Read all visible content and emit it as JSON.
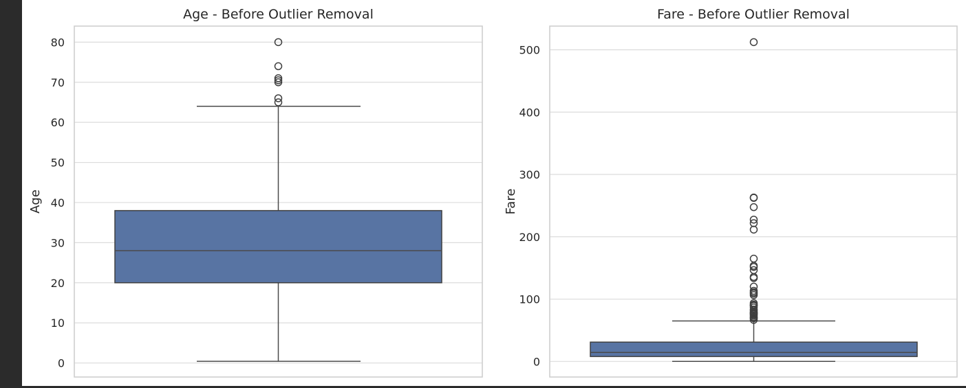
{
  "chart_data": [
    {
      "type": "box",
      "title": "Age - Before Outlier Removal",
      "xlabel": "",
      "ylabel": "Age",
      "ylim": [
        -3.5,
        84
      ],
      "yticks": [
        0,
        10,
        20,
        30,
        40,
        50,
        60,
        70,
        80
      ],
      "grid": true,
      "color": "#5874a3",
      "box": {
        "whisker_low": 0.42,
        "q1": 20,
        "median": 28,
        "q3": 38,
        "whisker_high": 64,
        "outliers": [
          65,
          66,
          70,
          70.5,
          71,
          74,
          80
        ]
      }
    },
    {
      "type": "box",
      "title": "Fare - Before Outlier Removal",
      "xlabel": "",
      "ylabel": "Fare",
      "ylim": [
        -25,
        538
      ],
      "yticks": [
        0,
        100,
        200,
        300,
        400,
        500
      ],
      "grid": true,
      "color": "#5874a3",
      "box": {
        "whisker_low": 0,
        "q1": 7.9,
        "median": 14.45,
        "q3": 31,
        "whisker_high": 65,
        "outliers": [
          512.3,
          263,
          262.4,
          247.5,
          227.5,
          221.8,
          211.5,
          164.9,
          153.5,
          151.6,
          146.5,
          135.6,
          133.7,
          120,
          113.3,
          110.9,
          108.9,
          106.4,
          93.5,
          91.1,
          90,
          89.1,
          86.5,
          83.2,
          82.2,
          79.6,
          78.3,
          77.3,
          76.7,
          75.2,
          73.5,
          71.3,
          69.6,
          69.3,
          66.6
        ]
      }
    }
  ]
}
